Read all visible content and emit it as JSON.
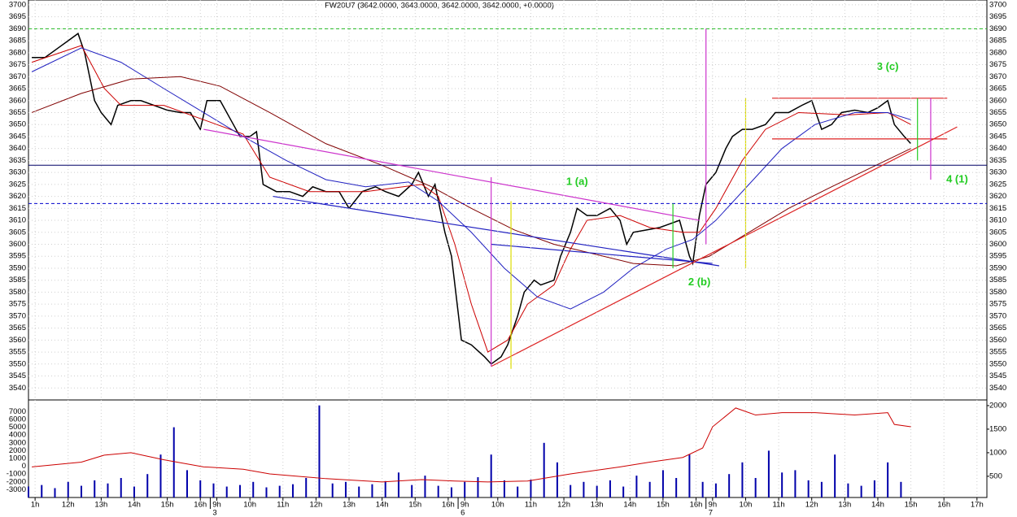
{
  "chart_data": [
    {
      "type": "line",
      "title": "FW20U7 (3642.0000, 3643.0000, 3642.0000, 3642.0000, +0.0000)",
      "xlim": [
        0,
        290
      ],
      "ylim": [
        3535,
        3702
      ],
      "grid": true,
      "yticks": [
        3700,
        3695,
        3690,
        3685,
        3680,
        3675,
        3670,
        3665,
        3660,
        3655,
        3650,
        3645,
        3640,
        3635,
        3630,
        3625,
        3620,
        3615,
        3610,
        3605,
        3600,
        3595,
        3590,
        3585,
        3580,
        3575,
        3570,
        3565,
        3560,
        3555,
        3550,
        3545,
        3540
      ],
      "series": [
        {
          "color": "#000000",
          "x": [
            1,
            5,
            9,
            12,
            15,
            17,
            20,
            22,
            25,
            27,
            31,
            34,
            38,
            42,
            46,
            49,
            52,
            54,
            58,
            62,
            64,
            67,
            69,
            71,
            75,
            79,
            83,
            86,
            90,
            94,
            97,
            101,
            105,
            108,
            112,
            116,
            118,
            121,
            123,
            126,
            128,
            131,
            134,
            138,
            140,
            143,
            145,
            148,
            150,
            153,
            155,
            159,
            161,
            164,
            166,
            169,
            172,
            176,
            179,
            181,
            183,
            187,
            191,
            193,
            197,
            200,
            201,
            203,
            205,
            208,
            211,
            213,
            216,
            219,
            223,
            226,
            230,
            234,
            237,
            240,
            243,
            246,
            250,
            254,
            257,
            260,
            262,
            265,
            267
          ],
          "values": [
            3678,
            3678,
            3682,
            3685,
            3688,
            3680,
            3660,
            3655,
            3650,
            3658,
            3660,
            3660,
            3658,
            3656,
            3655,
            3655,
            3648,
            3660,
            3660,
            3650,
            3645,
            3645,
            3647,
            3625,
            3622,
            3622,
            3620,
            3624,
            3622,
            3622,
            3615,
            3622,
            3624,
            3622,
            3620,
            3625,
            3630,
            3620,
            3625,
            3605,
            3595,
            3560,
            3558,
            3553,
            3550,
            3553,
            3558,
            3570,
            3580,
            3585,
            3583,
            3585,
            3595,
            3605,
            3615,
            3612,
            3612,
            3615,
            3610,
            3600,
            3605,
            3606,
            3607,
            3608,
            3610,
            3595,
            3592,
            3612,
            3625,
            3630,
            3640,
            3645,
            3648,
            3648,
            3650,
            3655,
            3655,
            3658,
            3660,
            3648,
            3650,
            3655,
            3656,
            3655,
            3657,
            3660,
            3650,
            3645,
            3642
          ]
        },
        {
          "color": "#cc0000",
          "x": [
            1,
            16,
            23,
            28,
            41,
            53,
            65,
            73,
            85,
            102,
            119,
            124,
            129,
            134,
            139,
            145,
            151,
            159,
            164,
            169,
            179,
            188,
            198,
            203,
            208,
            216,
            223,
            233,
            248,
            260,
            267
          ],
          "values": [
            3676,
            3683,
            3665,
            3658,
            3658,
            3652,
            3646,
            3628,
            3622,
            3622,
            3625,
            3620,
            3600,
            3575,
            3555,
            3560,
            3575,
            3583,
            3598,
            3610,
            3612,
            3607,
            3605,
            3605,
            3615,
            3635,
            3648,
            3655,
            3654,
            3655,
            3650
          ]
        },
        {
          "color": "#2020c0",
          "x": [
            1,
            16,
            28,
            41,
            53,
            65,
            78,
            90,
            102,
            115,
            124,
            134,
            144,
            154,
            164,
            174,
            183,
            193,
            201,
            208,
            218,
            228,
            238,
            250,
            260,
            267
          ],
          "values": [
            3672,
            3682,
            3676,
            3665,
            3655,
            3645,
            3635,
            3627,
            3624,
            3626,
            3618,
            3605,
            3590,
            3578,
            3573,
            3580,
            3590,
            3598,
            3602,
            3610,
            3625,
            3640,
            3650,
            3655,
            3655,
            3652
          ]
        },
        {
          "color": "#800000",
          "x": [
            1,
            16,
            31,
            46,
            58,
            73,
            90,
            107,
            122,
            134,
            147,
            159,
            171,
            183,
            196,
            206,
            218,
            230,
            243,
            255,
            267
          ],
          "values": [
            3655,
            3663,
            3669,
            3670,
            3666,
            3655,
            3642,
            3633,
            3624,
            3615,
            3606,
            3600,
            3596,
            3592,
            3591,
            3595,
            3605,
            3615,
            3624,
            3632,
            3640
          ]
        }
      ],
      "hlines": [
        {
          "value": 3690,
          "color": "#22bb22",
          "dash": true
        },
        {
          "value": 3633,
          "color": "#000066",
          "dash": false
        },
        {
          "value": 3617,
          "color": "#0000cc",
          "dash": true
        }
      ],
      "segments": [
        {
          "color": "#cc33cc",
          "x": [
            53,
            203
          ],
          "y": [
            3648,
            3610
          ]
        },
        {
          "color": "#2020c0",
          "x": [
            74,
            209
          ],
          "y": [
            3620,
            3591
          ]
        },
        {
          "color": "#2020c0",
          "x": [
            140,
            207
          ],
          "y": [
            3600,
            3592
          ]
        },
        {
          "color": "#dd2222",
          "x": [
            140,
            281
          ],
          "y": [
            3549,
            3649
          ]
        },
        {
          "color": "#dd2222",
          "x": [
            225,
            278
          ],
          "y": [
            3661,
            3661
          ]
        },
        {
          "color": "#dd2222",
          "x": [
            225,
            278
          ],
          "y": [
            3644,
            3644
          ]
        },
        {
          "color": "#cc33cc",
          "x": [
            140,
            140
          ],
          "y": [
            3628,
            3549
          ]
        },
        {
          "color": "#cc33cc",
          "x": [
            205,
            205
          ],
          "y": [
            3690,
            3600
          ]
        },
        {
          "color": "#dddd00",
          "x": [
            146,
            146
          ],
          "y": [
            3618,
            3548
          ]
        },
        {
          "color": "#dddd00",
          "x": [
            217,
            217
          ],
          "y": [
            3661,
            3590
          ]
        },
        {
          "color": "#22cc22",
          "x": [
            195,
            195
          ],
          "y": [
            3617,
            3590
          ]
        },
        {
          "color": "#22cc22",
          "x": [
            269,
            269
          ],
          "y": [
            3661,
            3635
          ]
        },
        {
          "color": "#cc33cc",
          "x": [
            273,
            273
          ],
          "y": [
            3661,
            3627
          ]
        }
      ],
      "annotations": [
        {
          "text": "1 (a)",
          "x": 166,
          "y": 3626,
          "color": "#22cc22"
        },
        {
          "text": "2 (b)",
          "x": 203,
          "y": 3584,
          "color": "#22cc22"
        },
        {
          "text": "3 (c)",
          "x": 260,
          "y": 3674,
          "color": "#22cc22"
        },
        {
          "text": "4 (1)",
          "x": 281,
          "y": 3627,
          "color": "#22cc22"
        }
      ]
    },
    {
      "type": "bar",
      "xlim": [
        0,
        290
      ],
      "ylim": [
        -4000,
        8500
      ],
      "y2lim": [
        50,
        2120
      ],
      "yticks": [
        7000,
        6000,
        5000,
        4000,
        3000,
        2000,
        1000,
        0,
        -1000,
        -2000,
        -3000
      ],
      "y2ticks": [
        2000,
        1500,
        1000,
        500
      ],
      "xticks": [
        {
          "value": 2,
          "label": "1h"
        },
        {
          "value": 12,
          "label": "12h"
        },
        {
          "value": 22,
          "label": "13h"
        },
        {
          "value": 32,
          "label": "14h"
        },
        {
          "value": 42,
          "label": "15h"
        },
        {
          "value": 52,
          "label": "16h"
        },
        {
          "value": 57,
          "label": "9h"
        },
        {
          "value": 67,
          "label": "10h"
        },
        {
          "value": 77,
          "label": "11h"
        },
        {
          "value": 87,
          "label": "12h"
        },
        {
          "value": 97,
          "label": "13h"
        },
        {
          "value": 107,
          "label": "14h"
        },
        {
          "value": 117,
          "label": "15h"
        },
        {
          "value": 127,
          "label": "16h"
        },
        {
          "value": 132,
          "label": "9h"
        },
        {
          "value": 142,
          "label": "10h"
        },
        {
          "value": 152,
          "label": "11h"
        },
        {
          "value": 162,
          "label": "12h"
        },
        {
          "value": 172,
          "label": "13h"
        },
        {
          "value": 182,
          "label": "14h"
        },
        {
          "value": 192,
          "label": "15h"
        },
        {
          "value": 202,
          "label": "16h"
        },
        {
          "value": 207,
          "label": "9h"
        },
        {
          "value": 217,
          "label": "10h"
        },
        {
          "value": 227,
          "label": "11h"
        },
        {
          "value": 237,
          "label": "12h"
        },
        {
          "value": 247,
          "label": "13h"
        },
        {
          "value": 257,
          "label": "14h"
        },
        {
          "value": 267,
          "label": "15h"
        },
        {
          "value": 277,
          "label": "16h"
        },
        {
          "value": 287,
          "label": "17h"
        }
      ],
      "dayticks": [
        {
          "value": 55,
          "label": "3"
        },
        {
          "value": 130,
          "label": "6"
        },
        {
          "value": 205,
          "label": "7"
        }
      ],
      "series": [
        {
          "color": "#0000aa",
          "x": [
            0,
            4,
            8,
            12,
            16,
            20,
            24,
            28,
            32,
            36,
            40,
            44,
            48,
            52,
            56,
            60,
            64,
            68,
            72,
            76,
            80,
            84,
            88,
            92,
            96,
            100,
            104,
            108,
            112,
            116,
            120,
            124,
            128,
            132,
            136,
            140,
            144,
            148,
            152,
            156,
            160,
            164,
            168,
            172,
            176,
            180,
            184,
            188,
            192,
            196,
            200,
            204,
            208,
            212,
            216,
            220,
            224,
            228,
            232,
            236,
            240,
            244,
            248,
            252,
            256,
            260,
            264
          ],
          "values": [
            -2600,
            -2400,
            -2800,
            -2000,
            -2500,
            -1800,
            -2200,
            -1500,
            -2600,
            -1000,
            1500,
            5000,
            -500,
            -1800,
            -2200,
            -2600,
            -2400,
            -2000,
            -2700,
            -2500,
            -2300,
            -1500,
            7800,
            -2200,
            -2000,
            -2600,
            -2300,
            -1900,
            -800,
            -2400,
            -1200,
            -2500,
            -2700,
            -2000,
            -1400,
            1500,
            -1800,
            -2600,
            -1700,
            3000,
            500,
            -2400,
            -2000,
            -2500,
            -1800,
            -2600,
            -1200,
            -2000,
            -500,
            -1500,
            1500,
            -2000,
            -2200,
            -1000,
            500,
            -1500,
            2000,
            -800,
            -500,
            -1800,
            -2000,
            1500,
            -2200,
            -2500,
            -1800,
            500,
            -2000
          ]
        },
        {
          "type": "line",
          "axis": "y2",
          "color": "#cc0000",
          "x": [
            1,
            16,
            23,
            31,
            41,
            53,
            65,
            73,
            90,
            107,
            119,
            129,
            139,
            151,
            164,
            179,
            188,
            198,
            204,
            207,
            214,
            220,
            228,
            238,
            250,
            260,
            262,
            267
          ],
          "values": [
            700,
            800,
            950,
            1000,
            850,
            700,
            650,
            550,
            450,
            380,
            430,
            400,
            380,
            400,
            550,
            700,
            800,
            900,
            1100,
            1550,
            1950,
            1800,
            1850,
            1850,
            1800,
            1850,
            1600,
            1550
          ]
        }
      ]
    }
  ]
}
